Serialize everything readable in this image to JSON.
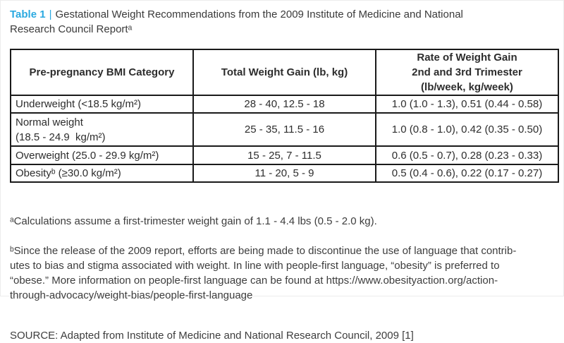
{
  "title": {
    "label": "Table 1",
    "separator": "|",
    "text": "Gestational Weight Recommendations from the 2009 Institute of Medicine and National\nResearch Council Reportᵃ"
  },
  "colors": {
    "accent_blue": "#2aa9e0",
    "table_border": "#1a1a1a",
    "text": "#3a3a3a"
  },
  "table": {
    "columns": [
      "Pre-pregnancy BMI Category",
      "Total Weight Gain (lb, kg)",
      "Rate of Weight Gain\n2nd and 3rd Trimester\n(lb/week, kg/week)"
    ],
    "rows": [
      {
        "category": "Underweight (<18.5 kg/m²)",
        "total_gain": "28 - 40, 12.5 - 18",
        "rate": "1.0 (1.0 - 1.3), 0.51 (0.44 - 0.58)"
      },
      {
        "category": "Normal weight\n(18.5 - 24.9  kg/m²)",
        "total_gain": "25 - 35, 11.5 - 16",
        "rate": "1.0 (0.8 - 1.0), 0.42 (0.35 - 0.50)"
      },
      {
        "category": "Overweight (25.0 - 29.9 kg/m²)",
        "total_gain": "15 - 25, 7 - 11.5",
        "rate": "0.6 (0.5 - 0.7), 0.28 (0.23 - 0.33)"
      },
      {
        "category": "Obesityᵇ (≥30.0 kg/m²)",
        "total_gain": "11 - 20, 5 - 9",
        "rate": "0.5 (0.4 - 0.6), 0.22 (0.17 - 0.27)"
      }
    ]
  },
  "footnotes": {
    "a": "ᵃCalculations assume a first-trimester weight gain of 1.1 - 4.4 lbs (0.5 - 2.0 kg).",
    "b": "ᵇSince the release of the 2009 report, efforts are being made to discontinue the use of language that contrib-\nutes to bias and stigma associated with weight. In line with people-first language, “obesity” is preferred to\n“obese.” More information on people-first language can be found at https://www.obesityaction.org/action-\nthrough-advocacy/weight-bias/people-first-language"
  },
  "source": "SOURCE: Adapted from Institute of Medicine and National Research Council, 2009 [1]"
}
